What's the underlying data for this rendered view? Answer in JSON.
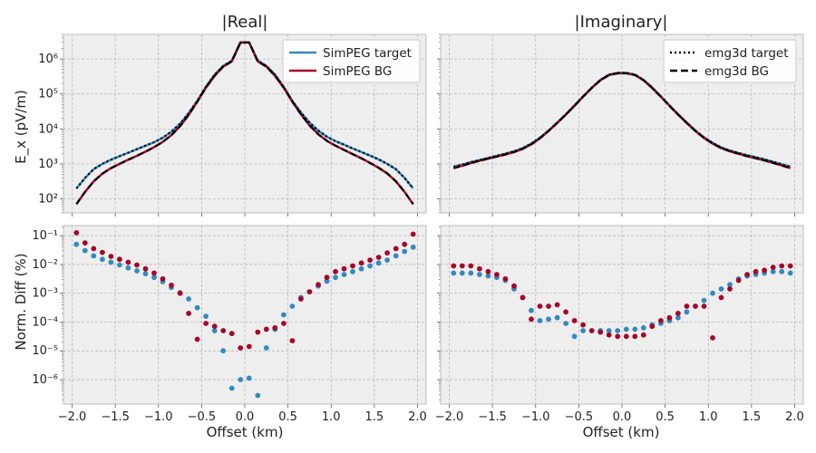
{
  "figure": {
    "titles": [
      "|Real|",
      "|Imaginary|"
    ],
    "xlabel": "Offset (km)",
    "ylabel_top": "E_x (pV/m)",
    "ylabel_bottom": "Norm. Diff (%)"
  },
  "colors": {
    "simpeg_target": "#348abd",
    "simpeg_bg": "#a60628",
    "emg3d": "#000000",
    "panel_bg": "#eeeeee",
    "grid": "#b0b0b0"
  },
  "legends": {
    "real": [
      "SimPEG target",
      "SimPEG BG"
    ],
    "imag": [
      "emg3d target",
      "emg3d BG"
    ]
  },
  "x_ticks": [
    "−2.0",
    "−1.5",
    "−1.0",
    "−0.5",
    "0.0",
    "0.5",
    "1.0",
    "1.5",
    "2.0"
  ],
  "chart_data": [
    {
      "panel": "real-field",
      "type": "line",
      "title": "|Real|",
      "ylabel": "E_x (pV/m)",
      "xlim": [
        -2.1,
        2.1
      ],
      "ylim_log10": [
        1.6,
        6.7
      ],
      "yscale": "log",
      "grid": true,
      "legend": "top-right",
      "x": [
        -1.95,
        -1.85,
        -1.75,
        -1.65,
        -1.55,
        -1.45,
        -1.35,
        -1.25,
        -1.15,
        -1.05,
        -0.95,
        -0.85,
        -0.75,
        -0.65,
        -0.55,
        -0.45,
        -0.35,
        -0.25,
        -0.15,
        -0.05,
        0.05,
        0.15,
        0.25,
        0.35,
        0.45,
        0.55,
        0.65,
        0.75,
        0.85,
        0.95,
        1.05,
        1.15,
        1.25,
        1.35,
        1.45,
        1.55,
        1.65,
        1.75,
        1.85,
        1.95
      ],
      "series": [
        {
          "name": "SimPEG target",
          "log10_values": [
            2.3,
            2.6,
            2.85,
            3.0,
            3.12,
            3.22,
            3.32,
            3.42,
            3.52,
            3.62,
            3.75,
            3.92,
            4.15,
            4.45,
            4.8,
            5.2,
            5.55,
            5.8,
            5.95,
            6.47,
            6.47,
            5.95,
            5.8,
            5.55,
            5.2,
            4.8,
            4.47,
            4.18,
            3.95,
            3.78,
            3.65,
            3.55,
            3.44,
            3.34,
            3.24,
            3.13,
            3.0,
            2.85,
            2.6,
            2.3
          ]
        },
        {
          "name": "SimPEG BG",
          "log10_values": [
            1.85,
            2.2,
            2.5,
            2.72,
            2.88,
            3.0,
            3.12,
            3.23,
            3.35,
            3.48,
            3.63,
            3.82,
            4.08,
            4.4,
            4.78,
            5.18,
            5.52,
            5.78,
            5.93,
            6.47,
            6.47,
            5.93,
            5.78,
            5.52,
            5.18,
            4.78,
            4.42,
            4.1,
            3.85,
            3.66,
            3.52,
            3.4,
            3.28,
            3.16,
            3.03,
            2.89,
            2.73,
            2.5,
            2.2,
            1.85
          ]
        },
        {
          "name": "emg3d target",
          "log10_values": [
            2.3,
            2.6,
            2.85,
            3.0,
            3.12,
            3.22,
            3.32,
            3.42,
            3.52,
            3.62,
            3.75,
            3.92,
            4.15,
            4.45,
            4.8,
            5.2,
            5.55,
            5.8,
            5.95,
            6.47,
            6.47,
            5.95,
            5.8,
            5.55,
            5.2,
            4.8,
            4.47,
            4.18,
            3.95,
            3.78,
            3.65,
            3.55,
            3.44,
            3.34,
            3.24,
            3.13,
            3.0,
            2.85,
            2.6,
            2.3
          ]
        },
        {
          "name": "emg3d BG",
          "log10_values": [
            1.85,
            2.2,
            2.5,
            2.72,
            2.88,
            3.0,
            3.12,
            3.23,
            3.35,
            3.48,
            3.63,
            3.82,
            4.08,
            4.4,
            4.78,
            5.18,
            5.52,
            5.78,
            5.93,
            6.47,
            6.47,
            5.93,
            5.78,
            5.52,
            5.18,
            4.78,
            4.42,
            4.1,
            3.85,
            3.66,
            3.52,
            3.4,
            3.28,
            3.16,
            3.03,
            2.89,
            2.73,
            2.5,
            2.2,
            1.85
          ]
        }
      ]
    },
    {
      "panel": "imag-field",
      "type": "line",
      "title": "|Imaginary|",
      "xlim": [
        -2.1,
        2.1
      ],
      "ylim_log10": [
        1.6,
        6.7
      ],
      "yscale": "log",
      "grid": true,
      "legend": "top-right",
      "x": [
        -1.95,
        -1.85,
        -1.75,
        -1.65,
        -1.55,
        -1.45,
        -1.35,
        -1.25,
        -1.15,
        -1.05,
        -0.95,
        -0.85,
        -0.75,
        -0.65,
        -0.55,
        -0.45,
        -0.35,
        -0.25,
        -0.15,
        -0.05,
        0.05,
        0.15,
        0.25,
        0.35,
        0.45,
        0.55,
        0.65,
        0.75,
        0.85,
        0.95,
        1.05,
        1.15,
        1.25,
        1.35,
        1.45,
        1.55,
        1.65,
        1.75,
        1.85,
        1.95
      ],
      "series": [
        {
          "name": "SimPEG target",
          "log10_values": [
            2.92,
            2.98,
            3.05,
            3.11,
            3.17,
            3.23,
            3.29,
            3.36,
            3.45,
            3.58,
            3.75,
            3.95,
            4.18,
            4.42,
            4.67,
            4.93,
            5.18,
            5.4,
            5.55,
            5.6,
            5.6,
            5.55,
            5.4,
            5.18,
            4.93,
            4.67,
            4.42,
            4.18,
            3.95,
            3.76,
            3.6,
            3.47,
            3.38,
            3.31,
            3.25,
            3.19,
            3.13,
            3.06,
            2.99,
            2.92
          ]
        },
        {
          "name": "SimPEG BG",
          "log10_values": [
            2.88,
            2.95,
            3.02,
            3.09,
            3.15,
            3.21,
            3.27,
            3.34,
            3.43,
            3.56,
            3.73,
            3.94,
            4.17,
            4.41,
            4.66,
            4.92,
            5.17,
            5.39,
            5.54,
            5.59,
            5.59,
            5.54,
            5.39,
            5.17,
            4.92,
            4.66,
            4.41,
            4.17,
            3.94,
            3.74,
            3.58,
            3.45,
            3.36,
            3.29,
            3.22,
            3.16,
            3.1,
            3.03,
            2.96,
            2.88
          ]
        },
        {
          "name": "emg3d target",
          "log10_values": [
            2.92,
            2.98,
            3.05,
            3.11,
            3.17,
            3.23,
            3.29,
            3.36,
            3.45,
            3.58,
            3.75,
            3.95,
            4.18,
            4.42,
            4.67,
            4.93,
            5.18,
            5.4,
            5.55,
            5.6,
            5.6,
            5.55,
            5.4,
            5.18,
            4.93,
            4.67,
            4.42,
            4.18,
            3.95,
            3.76,
            3.6,
            3.47,
            3.38,
            3.31,
            3.25,
            3.19,
            3.13,
            3.06,
            2.99,
            2.92
          ]
        },
        {
          "name": "emg3d BG",
          "log10_values": [
            2.88,
            2.95,
            3.02,
            3.09,
            3.15,
            3.21,
            3.27,
            3.34,
            3.43,
            3.56,
            3.73,
            3.94,
            4.17,
            4.41,
            4.66,
            4.92,
            5.17,
            5.39,
            5.54,
            5.59,
            5.59,
            5.54,
            5.39,
            5.17,
            4.92,
            4.66,
            4.41,
            4.17,
            3.94,
            3.74,
            3.58,
            3.45,
            3.36,
            3.29,
            3.22,
            3.16,
            3.1,
            3.03,
            2.96,
            2.88
          ]
        }
      ]
    },
    {
      "panel": "real-diff",
      "type": "scatter",
      "ylabel": "Norm. Diff (%)",
      "xlabel": "Offset (km)",
      "xlim": [
        -2.1,
        2.1
      ],
      "ylim_log10": [
        -6.85,
        -0.65
      ],
      "yscale": "log",
      "grid": true,
      "x": [
        -1.95,
        -1.85,
        -1.75,
        -1.65,
        -1.55,
        -1.45,
        -1.35,
        -1.25,
        -1.15,
        -1.05,
        -0.95,
        -0.85,
        -0.75,
        -0.65,
        -0.55,
        -0.45,
        -0.35,
        -0.25,
        -0.15,
        -0.05,
        0.05,
        0.15,
        0.25,
        0.35,
        0.45,
        0.55,
        0.65,
        0.75,
        0.85,
        0.95,
        1.05,
        1.15,
        1.25,
        1.35,
        1.45,
        1.55,
        1.65,
        1.75,
        1.85,
        1.95
      ],
      "series": [
        {
          "name": "SimPEG target",
          "log10_values": [
            -1.3,
            -1.52,
            -1.7,
            -1.82,
            -1.92,
            -2.02,
            -2.12,
            -2.22,
            -2.32,
            -2.45,
            -2.6,
            -2.8,
            -2.98,
            -3.2,
            -3.5,
            -3.8,
            -4.3,
            -5.0,
            -6.3,
            -6.0,
            -5.95,
            -6.55,
            -4.9,
            -4.25,
            -3.75,
            -3.45,
            -3.15,
            -2.95,
            -2.75,
            -2.58,
            -2.45,
            -2.35,
            -2.25,
            -2.15,
            -2.05,
            -1.95,
            -1.85,
            -1.7,
            -1.55,
            -1.4
          ]
        },
        {
          "name": "SimPEG BG",
          "log10_values": [
            -0.9,
            -1.25,
            -1.45,
            -1.58,
            -1.72,
            -1.82,
            -1.92,
            -2.02,
            -2.15,
            -2.3,
            -2.5,
            -2.72,
            -3.0,
            -3.7,
            -4.6,
            -4.05,
            -4.15,
            -4.3,
            -4.4,
            -4.9,
            -4.85,
            -4.35,
            -4.25,
            -4.2,
            -4.05,
            -4.65,
            -3.2,
            -2.95,
            -2.7,
            -2.45,
            -2.25,
            -2.15,
            -2.05,
            -1.95,
            -1.85,
            -1.75,
            -1.6,
            -1.45,
            -1.3,
            -0.95
          ]
        }
      ]
    },
    {
      "panel": "imag-diff",
      "type": "scatter",
      "xlabel": "Offset (km)",
      "xlim": [
        -2.1,
        2.1
      ],
      "ylim_log10": [
        -6.85,
        -0.65
      ],
      "yscale": "log",
      "grid": true,
      "x": [
        -1.95,
        -1.85,
        -1.75,
        -1.65,
        -1.55,
        -1.45,
        -1.35,
        -1.25,
        -1.15,
        -1.05,
        -0.95,
        -0.85,
        -0.75,
        -0.65,
        -0.55,
        -0.45,
        -0.35,
        -0.25,
        -0.15,
        -0.05,
        0.05,
        0.15,
        0.25,
        0.35,
        0.45,
        0.55,
        0.65,
        0.75,
        0.85,
        0.95,
        1.05,
        1.15,
        1.25,
        1.35,
        1.45,
        1.55,
        1.65,
        1.75,
        1.85,
        1.95
      ],
      "series": [
        {
          "name": "SimPEG target",
          "log10_values": [
            -2.3,
            -2.3,
            -2.3,
            -2.35,
            -2.4,
            -2.45,
            -2.55,
            -2.85,
            -3.15,
            -3.6,
            -3.95,
            -3.9,
            -3.85,
            -4.05,
            -4.5,
            -4.3,
            -4.3,
            -4.3,
            -4.3,
            -4.3,
            -4.25,
            -4.25,
            -4.2,
            -4.1,
            -4.05,
            -3.95,
            -3.85,
            -3.65,
            -3.45,
            -3.25,
            -3.0,
            -2.85,
            -2.7,
            -2.5,
            -2.4,
            -2.35,
            -2.3,
            -2.25,
            -2.25,
            -2.3
          ]
        },
        {
          "name": "SimPEG BG",
          "log10_values": [
            -2.05,
            -2.05,
            -2.05,
            -2.15,
            -2.25,
            -2.35,
            -2.5,
            -2.75,
            -3.15,
            -3.9,
            -3.45,
            -3.45,
            -3.4,
            -3.65,
            -3.95,
            -4.1,
            -4.3,
            -4.35,
            -4.45,
            -4.5,
            -4.5,
            -4.5,
            -4.45,
            -4.15,
            -3.95,
            -3.85,
            -3.7,
            -3.45,
            -3.45,
            -3.45,
            -4.55,
            -3.15,
            -2.85,
            -2.55,
            -2.35,
            -2.25,
            -2.2,
            -2.1,
            -2.05,
            -2.05
          ]
        }
      ]
    }
  ]
}
